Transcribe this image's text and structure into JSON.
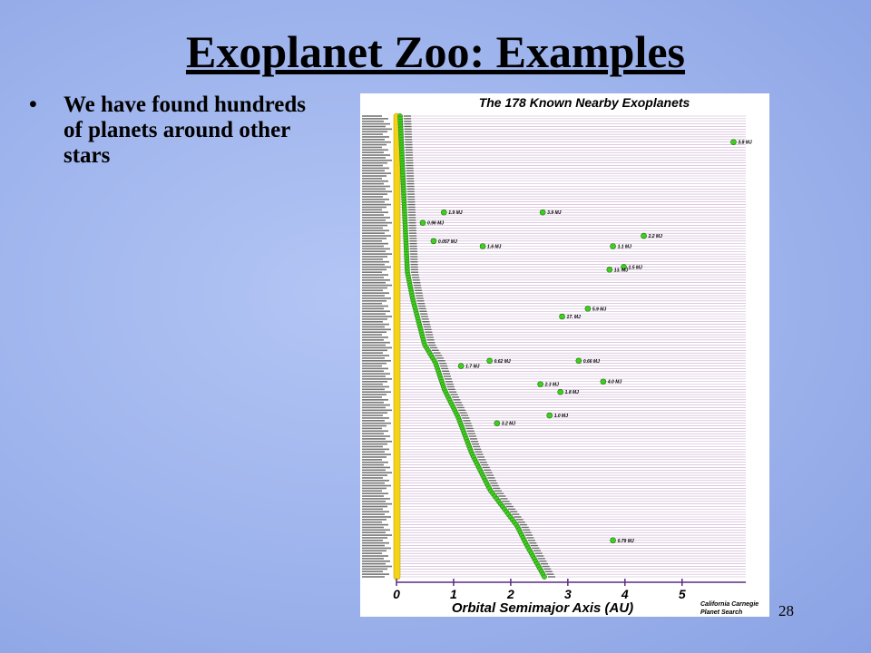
{
  "title": "Exoplanet Zoo: Examples",
  "bullets": [
    "We have found hundreds of planets around other stars"
  ],
  "page_number": "28",
  "chart_data": {
    "type": "scatter",
    "title": "The 178 Known Nearby Exoplanets",
    "xlabel": "Orbital Semimajor Axis  (AU)",
    "credit": [
      "California Carnegie",
      "Planet Search"
    ],
    "xlim": [
      0,
      6.1
    ],
    "xticks": [
      0,
      1,
      2,
      3,
      4,
      5
    ],
    "planets": [
      {
        "a": 5.9,
        "label": "3.8 MJ"
      },
      {
        "a": 0.83,
        "label": "1.9 MJ"
      },
      {
        "a": 2.56,
        "label": "3.9 MJ"
      },
      {
        "a": 0.46,
        "label": "0.96 MJ"
      },
      {
        "a": 4.33,
        "label": "2.2 MJ"
      },
      {
        "a": 0.65,
        "label": "0.057 MJ"
      },
      {
        "a": 1.51,
        "label": "1.6 MJ"
      },
      {
        "a": 3.79,
        "label": "1.1 MJ"
      },
      {
        "a": 3.98,
        "label": "1.5 MJ"
      },
      {
        "a": 3.73,
        "label": "13. MJ"
      },
      {
        "a": 3.35,
        "label": "5.9 MJ"
      },
      {
        "a": 2.9,
        "label": "17. MJ"
      },
      {
        "a": 1.63,
        "label": "0.62 MJ"
      },
      {
        "a": 3.19,
        "label": "0.66 MJ"
      },
      {
        "a": 1.13,
        "label": "1.7 MJ"
      },
      {
        "a": 3.62,
        "label": "4.0 MJ"
      },
      {
        "a": 2.52,
        "label": "2.3 MJ"
      },
      {
        "a": 2.87,
        "label": "1.8 MJ"
      },
      {
        "a": 2.68,
        "label": "1.0 MJ"
      },
      {
        "a": 1.76,
        "label": "3.2 MJ"
      },
      {
        "a": 3.79,
        "label": "0.79 MJ"
      }
    ]
  }
}
